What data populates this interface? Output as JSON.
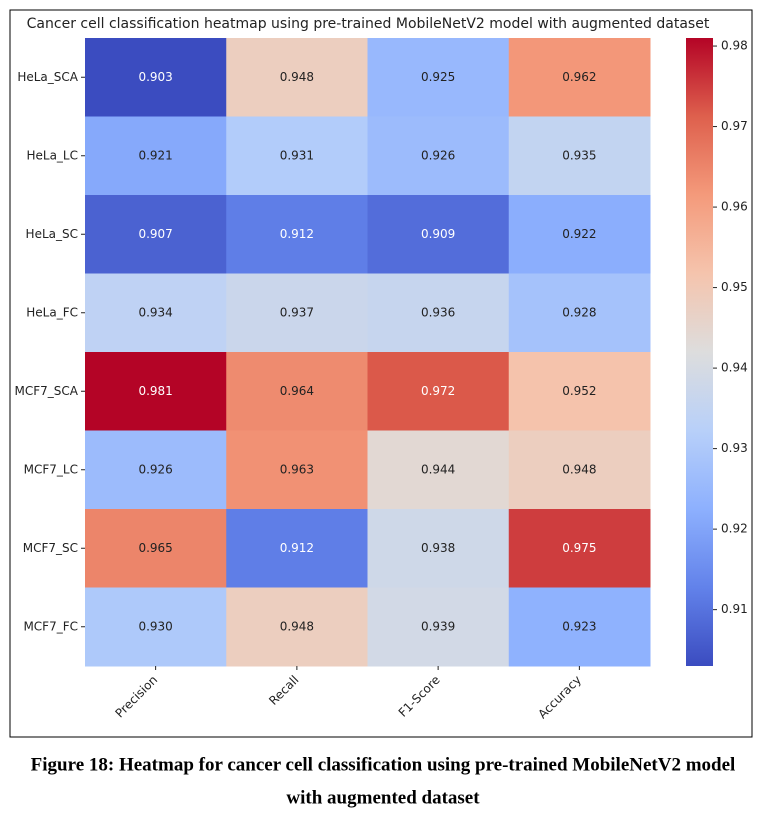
{
  "chart_data": {
    "type": "heatmap",
    "title": "Cancer cell classification heatmap using pre-trained MobileNetV2 model with augmented dataset",
    "columns": [
      "Precision",
      "Recall",
      "F1-Score",
      "Accuracy"
    ],
    "rows": [
      "HeLa_SCA",
      "HeLa_LC",
      "HeLa_SC",
      "HeLa_FC",
      "MCF7_SCA",
      "MCF7_LC",
      "MCF7_SC",
      "MCF7_FC"
    ],
    "values": [
      [
        0.903,
        0.948,
        0.925,
        0.962
      ],
      [
        0.921,
        0.931,
        0.926,
        0.935
      ],
      [
        0.907,
        0.912,
        0.909,
        0.922
      ],
      [
        0.934,
        0.937,
        0.936,
        0.928
      ],
      [
        0.981,
        0.964,
        0.972,
        0.952
      ],
      [
        0.926,
        0.963,
        0.944,
        0.948
      ],
      [
        0.965,
        0.912,
        0.938,
        0.975
      ],
      [
        0.93,
        0.948,
        0.939,
        0.923
      ]
    ],
    "value_labels": [
      [
        "0.903",
        "0.948",
        "0.925",
        "0.962"
      ],
      [
        "0.921",
        "0.931",
        "0.926",
        "0.935"
      ],
      [
        "0.907",
        "0.912",
        "0.909",
        "0.922"
      ],
      [
        "0.934",
        "0.937",
        "0.936",
        "0.928"
      ],
      [
        "0.981",
        "0.964",
        "0.972",
        "0.952"
      ],
      [
        "0.926",
        "0.963",
        "0.944",
        "0.948"
      ],
      [
        "0.965",
        "0.912",
        "0.938",
        "0.975"
      ],
      [
        "0.930",
        "0.948",
        "0.939",
        "0.923"
      ]
    ],
    "colormap": "coolwarm",
    "clim": [
      0.903,
      0.981
    ],
    "cticks": [
      0.91,
      0.92,
      0.93,
      0.94,
      0.95,
      0.96,
      0.97,
      0.98
    ],
    "caption": [
      "Figure 18: Heatmap for cancer cell classification using pre-trained MobileNetV2 model",
      "with augmented dataset"
    ]
  }
}
